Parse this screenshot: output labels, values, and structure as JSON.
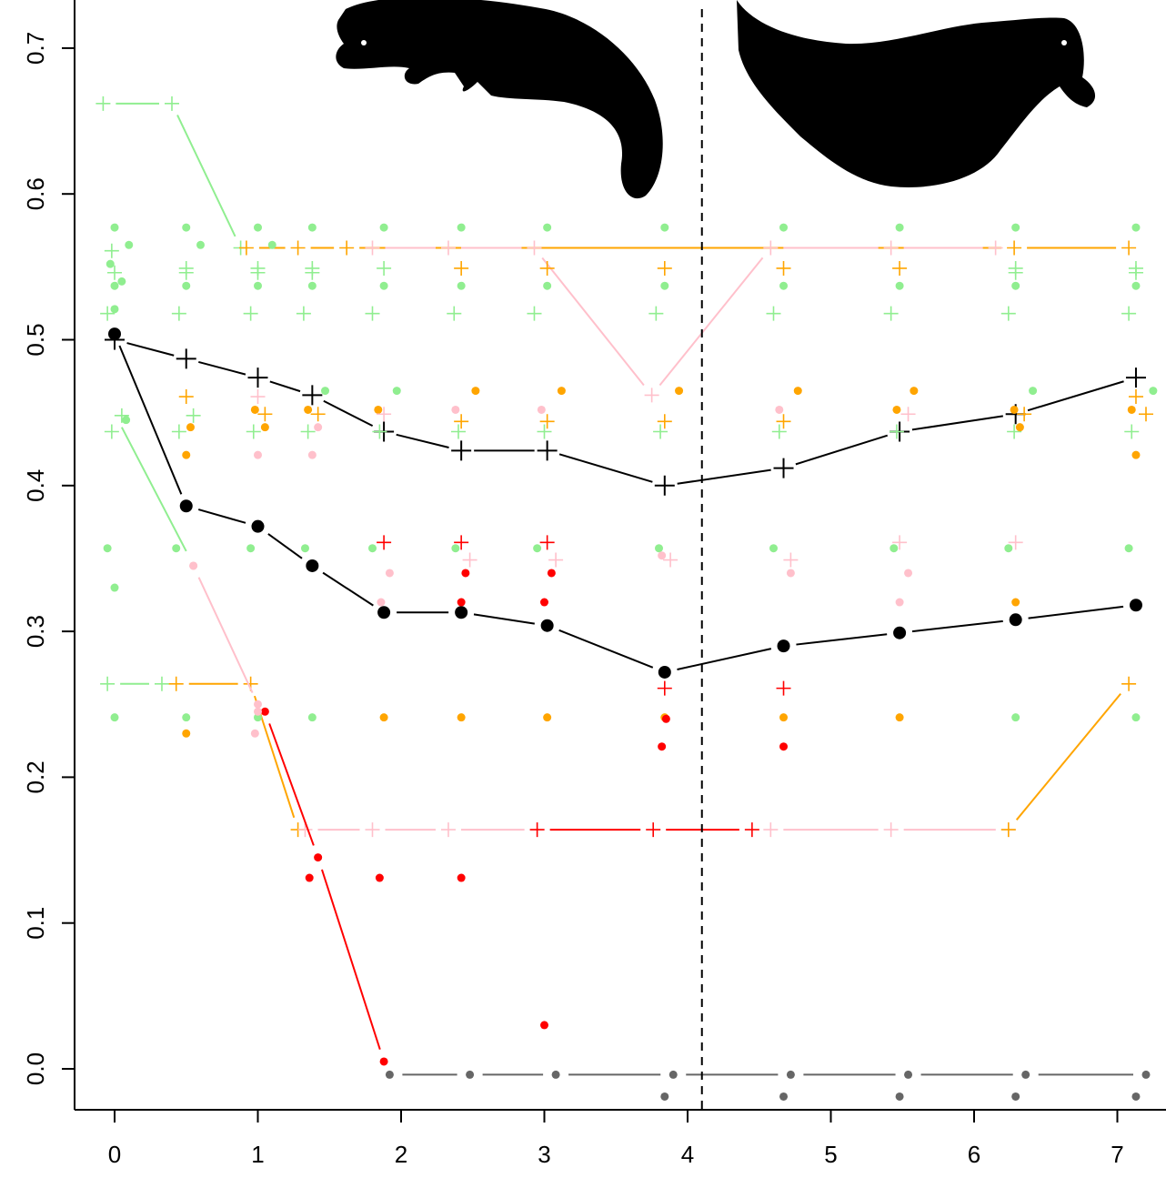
{
  "chart_data": {
    "type": "scatter",
    "title": "",
    "xlabel": "",
    "ylabel": "",
    "xlim": [
      -0.28,
      7.28
    ],
    "ylim": [
      -0.028,
      0.73
    ],
    "x_ticks": [
      0,
      1,
      2,
      3,
      4,
      5,
      6,
      7
    ],
    "x_tick_labels": [
      "0",
      "1",
      "2",
      "3",
      "4",
      "5",
      "6",
      "7"
    ],
    "y_ticks": [
      0.0,
      0.1,
      0.2,
      0.3,
      0.4,
      0.5,
      0.6,
      0.7
    ],
    "y_tick_labels": [
      "0.0",
      "0.1",
      "0.2",
      "0.3",
      "0.4",
      "0.5",
      "0.6",
      "0.7"
    ],
    "vline": {
      "x": 4.1,
      "style": "dashed"
    },
    "colors": {
      "black": "#000000",
      "green": "#90ee90",
      "orange": "#ffa500",
      "pink": "#ffc0cb",
      "red": "#ff0000",
      "gray": "#666666"
    },
    "icons": [
      "marten-silhouette-left",
      "marten-silhouette-right"
    ],
    "series": [
      {
        "color": "black",
        "marker": "plus",
        "line": true,
        "points": [
          [
            0,
            0.5
          ],
          [
            0.5,
            0.487
          ],
          [
            1.0,
            0.474
          ],
          [
            1.38,
            0.462
          ],
          [
            1.88,
            0.437
          ],
          [
            2.42,
            0.424
          ],
          [
            3.02,
            0.424
          ],
          [
            3.84,
            0.4
          ],
          [
            4.67,
            0.412
          ],
          [
            5.48,
            0.437
          ],
          [
            6.29,
            0.449
          ],
          [
            7.13,
            0.474
          ]
        ]
      },
      {
        "color": "black",
        "marker": "dot",
        "line": true,
        "points": [
          [
            0,
            0.504
          ],
          [
            0.5,
            0.386
          ],
          [
            1.0,
            0.372
          ],
          [
            1.38,
            0.345
          ],
          [
            1.88,
            0.313
          ],
          [
            2.42,
            0.313
          ],
          [
            3.02,
            0.304
          ],
          [
            3.84,
            0.272
          ],
          [
            4.67,
            0.29
          ],
          [
            5.48,
            0.299
          ],
          [
            6.29,
            0.308
          ],
          [
            7.13,
            0.318
          ]
        ]
      },
      {
        "color": "green",
        "marker": "plus",
        "line": true,
        "points": [
          [
            -0.08,
            0.662
          ],
          [
            0.4,
            0.662
          ],
          [
            0.88,
            0.563
          ]
        ]
      },
      {
        "color": "orange",
        "marker": "plus",
        "line": true,
        "points": [
          [
            0.92,
            0.563
          ],
          [
            1.28,
            0.563
          ],
          [
            1.62,
            0.563
          ],
          [
            6.28,
            0.563
          ],
          [
            7.08,
            0.563
          ]
        ]
      },
      {
        "color": "pink",
        "marker": "plus",
        "line": true,
        "points": [
          [
            1.8,
            0.563
          ],
          [
            2.33,
            0.563
          ],
          [
            2.93,
            0.563
          ],
          [
            3.75,
            0.462
          ],
          [
            4.58,
            0.563
          ],
          [
            5.42,
            0.563
          ],
          [
            6.15,
            0.563
          ]
        ]
      },
      {
        "color": "green",
        "marker": "plus",
        "line": true,
        "points": [
          [
            -0.05,
            0.264
          ],
          [
            0.33,
            0.264
          ]
        ]
      },
      {
        "color": "orange",
        "marker": "plus",
        "line": true,
        "points": [
          [
            0.43,
            0.264
          ],
          [
            0.95,
            0.264
          ],
          [
            1.28,
            0.164
          ]
        ]
      },
      {
        "color": "pink",
        "marker": "plus",
        "line": true,
        "points": [
          [
            1.33,
            0.164
          ],
          [
            1.8,
            0.164
          ],
          [
            2.33,
            0.164
          ],
          [
            2.95,
            0.164
          ]
        ]
      },
      {
        "color": "red",
        "marker": "plus",
        "line": true,
        "points": [
          [
            2.95,
            0.164
          ],
          [
            3.76,
            0.164
          ],
          [
            4.45,
            0.164
          ]
        ]
      },
      {
        "color": "pink",
        "marker": "plus",
        "line": true,
        "points": [
          [
            4.58,
            0.164
          ],
          [
            5.42,
            0.164
          ],
          [
            6.24,
            0.164
          ]
        ]
      },
      {
        "color": "orange",
        "marker": "plus",
        "line": true,
        "points": [
          [
            6.24,
            0.164
          ],
          [
            7.08,
            0.264
          ]
        ]
      },
      {
        "color": "green",
        "marker": "none",
        "line": true,
        "points": [
          [
            0.05,
            0.44
          ],
          [
            0.5,
            0.355
          ]
        ]
      },
      {
        "color": "pink",
        "marker": "dot",
        "line": true,
        "points": [
          [
            0.55,
            0.345
          ],
          [
            1.0,
            0.25
          ]
        ]
      },
      {
        "color": "red",
        "marker": "dot",
        "line": true,
        "points": [
          [
            1.05,
            0.245
          ],
          [
            1.42,
            0.145
          ],
          [
            1.88,
            0.005
          ]
        ]
      },
      {
        "color": "gray",
        "marker": "dot",
        "line": true,
        "points": [
          [
            1.92,
            -0.004
          ],
          [
            2.48,
            -0.004
          ],
          [
            3.08,
            -0.004
          ],
          [
            3.9,
            -0.004
          ],
          [
            4.72,
            -0.004
          ],
          [
            5.54,
            -0.004
          ],
          [
            6.36,
            -0.004
          ],
          [
            7.2,
            -0.004
          ]
        ]
      },
      {
        "color": "gray",
        "marker": "dot",
        "line": false,
        "points": [
          [
            3.84,
            -0.019
          ],
          [
            4.67,
            -0.019
          ],
          [
            5.48,
            -0.019
          ],
          [
            6.29,
            -0.019
          ],
          [
            7.13,
            -0.019
          ]
        ]
      },
      {
        "color": "green",
        "marker": "dot",
        "line": false,
        "points": [
          [
            0,
            0.577
          ],
          [
            0.5,
            0.577
          ],
          [
            1.0,
            0.577
          ],
          [
            1.38,
            0.577
          ],
          [
            1.88,
            0.577
          ],
          [
            2.42,
            0.577
          ],
          [
            3.02,
            0.577
          ],
          [
            3.84,
            0.577
          ],
          [
            4.67,
            0.577
          ],
          [
            5.48,
            0.577
          ],
          [
            6.29,
            0.577
          ],
          [
            7.13,
            0.577
          ],
          [
            -0.03,
            0.552
          ],
          [
            0.1,
            0.565
          ],
          [
            0.6,
            0.565
          ],
          [
            1.1,
            0.565
          ],
          [
            0.05,
            0.54
          ],
          [
            0,
            0.537
          ],
          [
            0.5,
            0.537
          ],
          [
            1.0,
            0.537
          ],
          [
            1.38,
            0.537
          ],
          [
            1.88,
            0.537
          ],
          [
            2.42,
            0.537
          ],
          [
            3.02,
            0.537
          ],
          [
            3.84,
            0.537
          ],
          [
            4.67,
            0.537
          ],
          [
            5.48,
            0.537
          ],
          [
            6.29,
            0.537
          ],
          [
            7.13,
            0.537
          ],
          [
            0,
            0.521
          ],
          [
            0.08,
            0.445
          ],
          [
            1.47,
            0.465
          ],
          [
            1.97,
            0.465
          ],
          [
            6.41,
            0.465
          ],
          [
            7.25,
            0.465
          ],
          [
            -0.05,
            0.357
          ],
          [
            0.43,
            0.357
          ],
          [
            0.95,
            0.357
          ],
          [
            1.33,
            0.357
          ],
          [
            1.8,
            0.357
          ],
          [
            2.38,
            0.357
          ],
          [
            2.95,
            0.357
          ],
          [
            3.8,
            0.357
          ],
          [
            4.6,
            0.357
          ],
          [
            5.44,
            0.357
          ],
          [
            6.24,
            0.357
          ],
          [
            7.08,
            0.357
          ],
          [
            0,
            0.33
          ],
          [
            0,
            0.241
          ],
          [
            0.5,
            0.241
          ],
          [
            1.0,
            0.241
          ],
          [
            1.38,
            0.241
          ],
          [
            6.29,
            0.241
          ],
          [
            7.13,
            0.241
          ]
        ]
      },
      {
        "color": "green",
        "marker": "plus",
        "line": false,
        "points": [
          [
            -0.02,
            0.561
          ],
          [
            0.5,
            0.549
          ],
          [
            1.0,
            0.549
          ],
          [
            1.38,
            0.549
          ],
          [
            1.88,
            0.549
          ],
          [
            6.29,
            0.549
          ],
          [
            7.13,
            0.549
          ],
          [
            0.0,
            0.546
          ],
          [
            0.5,
            0.546
          ],
          [
            1.0,
            0.546
          ],
          [
            1.38,
            0.546
          ],
          [
            6.29,
            0.546
          ],
          [
            7.13,
            0.546
          ],
          [
            -0.05,
            0.518
          ],
          [
            0.45,
            0.518
          ],
          [
            0.95,
            0.518
          ],
          [
            1.32,
            0.518
          ],
          [
            1.8,
            0.518
          ],
          [
            2.37,
            0.518
          ],
          [
            2.93,
            0.518
          ],
          [
            3.78,
            0.518
          ],
          [
            4.6,
            0.518
          ],
          [
            5.42,
            0.518
          ],
          [
            6.24,
            0.518
          ],
          [
            7.08,
            0.518
          ],
          [
            0.05,
            0.448
          ],
          [
            0.55,
            0.448
          ],
          [
            -0.02,
            0.437
          ],
          [
            0.45,
            0.437
          ],
          [
            0.97,
            0.437
          ],
          [
            1.35,
            0.437
          ],
          [
            1.85,
            0.437
          ],
          [
            2.4,
            0.437
          ],
          [
            3.0,
            0.437
          ],
          [
            3.81,
            0.437
          ],
          [
            4.64,
            0.437
          ],
          [
            5.46,
            0.437
          ],
          [
            6.28,
            0.437
          ],
          [
            7.1,
            0.437
          ]
        ]
      },
      {
        "color": "orange",
        "marker": "dot",
        "line": false,
        "points": [
          [
            0.53,
            0.44
          ],
          [
            1.05,
            0.44
          ],
          [
            0.5,
            0.421
          ],
          [
            7.13,
            0.421
          ],
          [
            0.98,
            0.452
          ],
          [
            1.35,
            0.452
          ],
          [
            1.84,
            0.452
          ],
          [
            6.28,
            0.452
          ],
          [
            7.1,
            0.452
          ],
          [
            2.52,
            0.465
          ],
          [
            3.12,
            0.465
          ],
          [
            3.94,
            0.465
          ],
          [
            4.77,
            0.465
          ],
          [
            5.58,
            0.465
          ],
          [
            6.32,
            0.44
          ],
          [
            5.46,
            0.452
          ],
          [
            0.5,
            0.23
          ],
          [
            1.88,
            0.241
          ],
          [
            2.42,
            0.241
          ],
          [
            3.02,
            0.241
          ],
          [
            3.84,
            0.241
          ],
          [
            4.67,
            0.241
          ],
          [
            5.48,
            0.241
          ],
          [
            6.29,
            0.32
          ]
        ]
      },
      {
        "color": "orange",
        "marker": "plus",
        "line": false,
        "points": [
          [
            0.5,
            0.461
          ],
          [
            1.05,
            0.449
          ],
          [
            1.42,
            0.449
          ],
          [
            2.42,
            0.549
          ],
          [
            3.02,
            0.549
          ],
          [
            3.84,
            0.549
          ],
          [
            4.67,
            0.549
          ],
          [
            5.48,
            0.549
          ],
          [
            7.13,
            0.461
          ],
          [
            7.2,
            0.449
          ],
          [
            2.42,
            0.444
          ],
          [
            3.02,
            0.444
          ],
          [
            3.84,
            0.444
          ],
          [
            4.67,
            0.444
          ],
          [
            6.35,
            0.449
          ]
        ]
      },
      {
        "color": "pink",
        "marker": "dot",
        "line": false,
        "points": [
          [
            1.0,
            0.421
          ],
          [
            1.38,
            0.421
          ],
          [
            1.42,
            0.44
          ],
          [
            2.38,
            0.452
          ],
          [
            2.98,
            0.452
          ],
          [
            4.64,
            0.452
          ],
          [
            3.82,
            0.352
          ],
          [
            4.72,
            0.34
          ],
          [
            5.54,
            0.34
          ],
          [
            1.92,
            0.34
          ],
          [
            5.48,
            0.32
          ],
          [
            1.86,
            0.32
          ],
          [
            0.55,
            0.345
          ],
          [
            0.98,
            0.23
          ],
          [
            1.0,
            0.245
          ]
        ]
      },
      {
        "color": "pink",
        "marker": "plus",
        "line": false,
        "points": [
          [
            1.0,
            0.461
          ],
          [
            1.88,
            0.449
          ],
          [
            2.48,
            0.349
          ],
          [
            3.08,
            0.349
          ],
          [
            3.88,
            0.349
          ],
          [
            4.72,
            0.349
          ],
          [
            5.48,
            0.361
          ],
          [
            5.54,
            0.449
          ],
          [
            6.29,
            0.361
          ]
        ]
      },
      {
        "color": "red",
        "marker": "dot",
        "line": false,
        "points": [
          [
            2.45,
            0.34
          ],
          [
            3.05,
            0.34
          ],
          [
            2.42,
            0.32
          ],
          [
            3.0,
            0.32
          ],
          [
            3.85,
            0.24
          ],
          [
            3.82,
            0.221
          ],
          [
            4.67,
            0.221
          ],
          [
            1.36,
            0.131
          ],
          [
            1.85,
            0.131
          ],
          [
            2.42,
            0.131
          ],
          [
            3.0,
            0.03
          ]
        ]
      },
      {
        "color": "red",
        "marker": "plus",
        "line": false,
        "points": [
          [
            1.88,
            0.361
          ],
          [
            2.42,
            0.361
          ],
          [
            3.02,
            0.361
          ],
          [
            3.84,
            0.261
          ],
          [
            4.67,
            0.261
          ]
        ]
      }
    ]
  }
}
